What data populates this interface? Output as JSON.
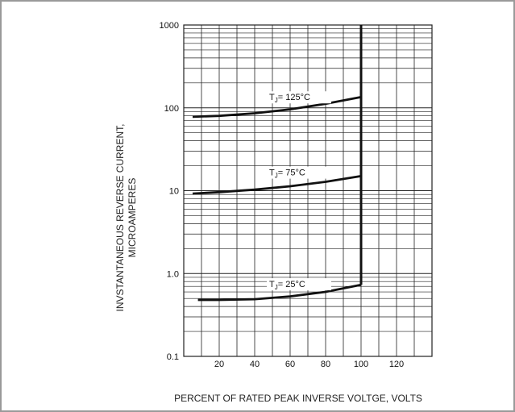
{
  "chart_data": {
    "type": "line",
    "xlabel": "PERCENT OF RATED PEAK INVERSE VOLTGE, VOLTS",
    "ylabel_line1": "INVSTANTANEOUS REVERSE CURRENT,",
    "ylabel_line2": "MICROAMPERES",
    "xlim": [
      0,
      140
    ],
    "ylim": [
      0.1,
      1000
    ],
    "yscale": "log",
    "grid": true,
    "x_ticks": [
      "20",
      "40",
      "60",
      "80",
      "100",
      "120"
    ],
    "y_ticks": [
      "0.1",
      "1.0",
      "10",
      "100",
      "1000"
    ],
    "vertical_limit_x": 100,
    "series": [
      {
        "name": "T",
        "sub": "J",
        "temp": "= 125",
        "unit": "°C",
        "x": [
          5,
          20,
          40,
          60,
          80,
          100
        ],
        "y": [
          78,
          80,
          86,
          96,
          112,
          135
        ]
      },
      {
        "name": "T",
        "sub": "J",
        "temp": "= 75",
        "unit": "°C",
        "x": [
          5,
          20,
          40,
          60,
          80,
          100
        ],
        "y": [
          9.2,
          9.6,
          10.3,
          11.3,
          12.8,
          15
        ]
      },
      {
        "name": "T",
        "sub": "J",
        "temp": "= 25",
        "unit": "°C",
        "x": [
          8,
          20,
          40,
          60,
          80,
          100
        ],
        "y": [
          0.48,
          0.48,
          0.49,
          0.53,
          0.6,
          0.73
        ]
      }
    ]
  }
}
